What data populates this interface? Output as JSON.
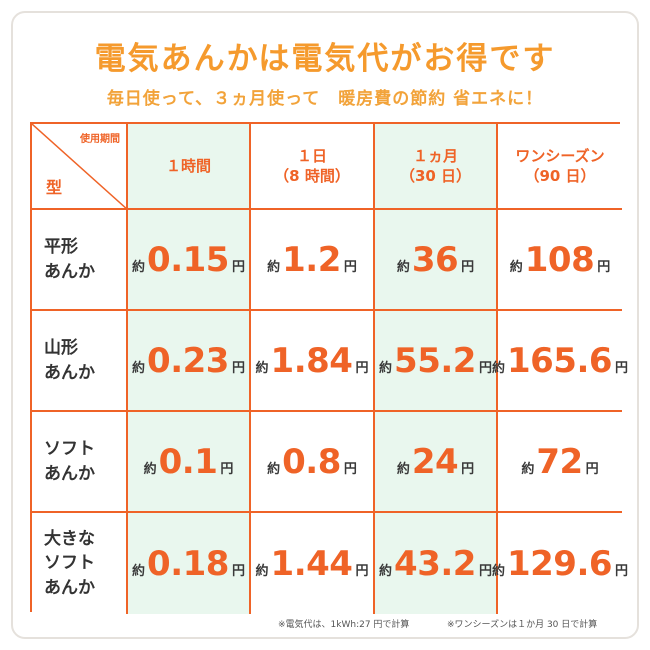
{
  "title": "電気あんかは電気代がお得です",
  "subtitle": "毎日使って、３ヵ月使って　暖房費の節約 省エネに！",
  "table": {
    "corner_top": "使用期間",
    "corner_bottom": "型",
    "headers": [
      {
        "line1": "１時間",
        "line2": ""
      },
      {
        "line1": "１日",
        "line2": "（8 時間）"
      },
      {
        "line1": "１ヵ月",
        "line2": "（30 日）"
      },
      {
        "line1": "ワンシーズン",
        "line2": "（90 日）"
      }
    ],
    "prefix": "約",
    "suffix": "円",
    "rows": [
      {
        "label": [
          "平形",
          "あんか"
        ],
        "values": [
          "0.15",
          "1.2",
          "36",
          "108"
        ]
      },
      {
        "label": [
          "山形",
          "あんか"
        ],
        "values": [
          "0.23",
          "1.84",
          "55.2",
          "165.6"
        ]
      },
      {
        "label": [
          "ソフト",
          "あんか"
        ],
        "values": [
          "0.1",
          "0.8",
          "24",
          "72"
        ]
      },
      {
        "label": [
          "大きな",
          "ソフト",
          "あんか"
        ],
        "values": [
          "0.18",
          "1.44",
          "43.2",
          "129.6"
        ]
      }
    ]
  },
  "footnotes": [
    "※電気代は、1kWh:27 円で計算",
    "※ワンシーズンは１か月 30 日で計算"
  ],
  "colors": {
    "accent": "#ef6327",
    "title": "#f59a2d",
    "highlight": "#e9f7ee"
  }
}
